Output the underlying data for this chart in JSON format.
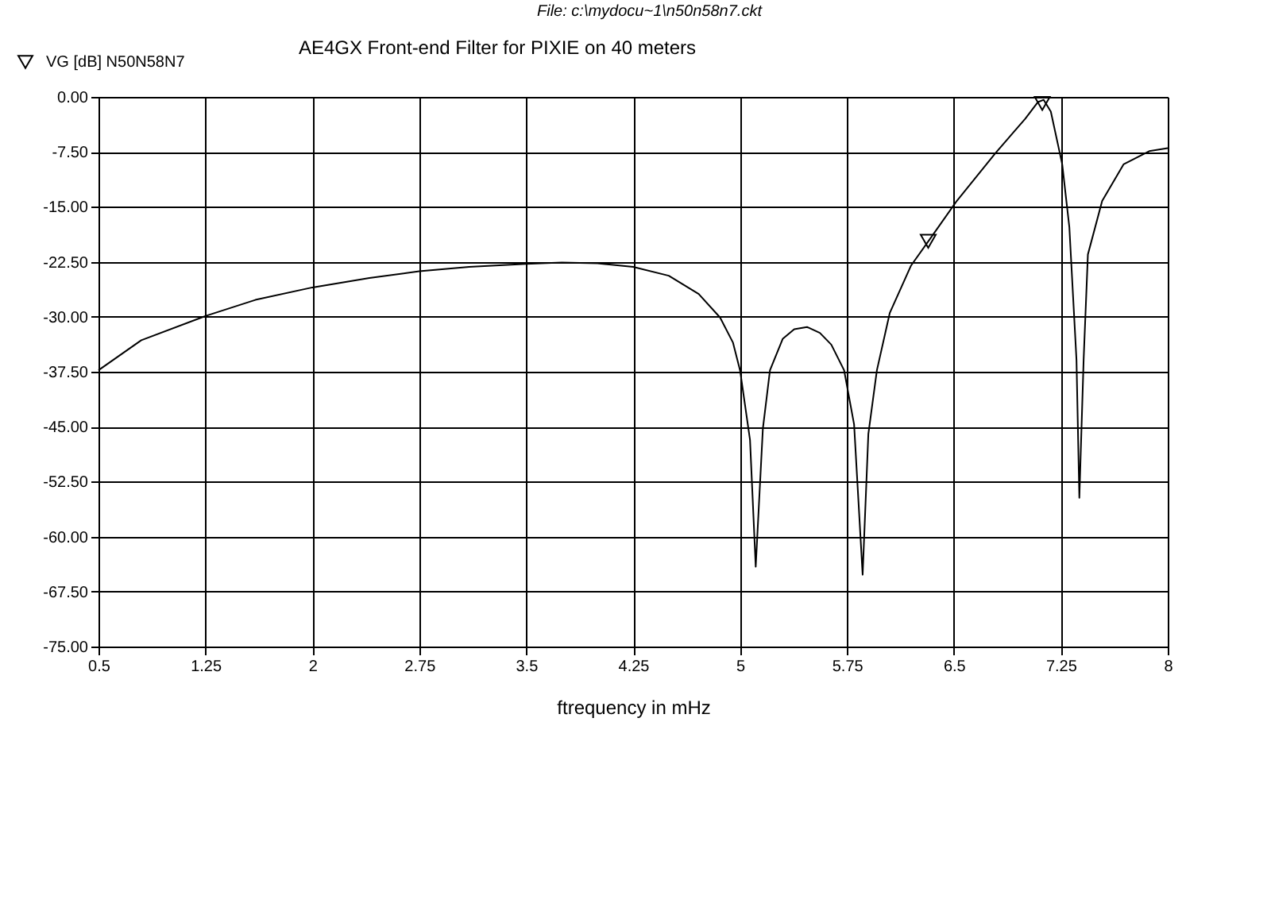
{
  "chart_data": {
    "type": "line",
    "title": "AE4GX  Front-end Filter for PIXIE on 40 meters",
    "xlabel": "ftrequency in mHz",
    "annotations": [
      "File: c:\\mydocu~1\\n50n58n7.ckt"
    ],
    "series": [
      {
        "name": "VG [dB] N50N58N7",
        "color": "#000000",
        "marker": "none",
        "x": [
          0.5,
          0.8,
          1.25,
          1.6,
          2,
          2.4,
          2.75,
          3.1,
          3.5,
          3.75,
          4.0,
          4.25,
          4.5,
          4.71,
          4.86,
          4.95,
          5.0,
          5.07,
          5.11,
          5.16,
          5.21,
          5.3,
          5.38,
          5.47,
          5.56,
          5.64,
          5.73,
          5.8,
          5.86,
          5.9,
          5.96,
          6.05,
          6.2,
          6.35,
          6.52,
          6.79,
          7.0,
          7.09,
          7.13,
          7.18,
          7.26,
          7.31,
          7.36,
          7.38,
          7.41,
          7.44,
          7.54,
          7.69,
          7.87,
          8.0
        ],
        "values": [
          -37.3,
          -33.2,
          -29.9,
          -27.7,
          -26.0,
          -24.7,
          -23.8,
          -23.2,
          -22.8,
          -22.6,
          -22.7,
          -23.2,
          -24.4,
          -26.9,
          -30.1,
          -33.5,
          -37.3,
          -46.8,
          -64.1,
          -45.3,
          -37.3,
          -33.0,
          -31.7,
          -31.4,
          -32.2,
          -33.8,
          -37.3,
          -44.7,
          -65.2,
          -46.0,
          -37.3,
          -29.5,
          -23.0,
          -18.9,
          -14.2,
          -7.7,
          -3.0,
          -0.7,
          -0.4,
          -2.0,
          -9.2,
          -17.8,
          -35.9,
          -54.7,
          -35.9,
          -21.5,
          -14.2,
          -9.2,
          -7.4,
          -7.0
        ]
      },
      {
        "type": "scatter",
        "color": "#000000",
        "marker": "triangle",
        "x": [
          6.32,
          7.12
        ],
        "values": [
          -19.7,
          -0.9
        ]
      }
    ],
    "xlim": [
      0.5,
      8
    ],
    "xticks": [
      0.5,
      1.25,
      2,
      2.75,
      3.5,
      4.25,
      5,
      5.75,
      6.5,
      7.25,
      8
    ],
    "ylim": [
      -75,
      0
    ],
    "yticks": [
      {
        "value": 0,
        "label": "0.00"
      },
      {
        "value": -7.5,
        "label": "-7.50"
      },
      {
        "value": -15,
        "label": "-15.00"
      },
      {
        "value": -22.5,
        "label": "-22.50"
      },
      {
        "value": -30,
        "label": "-30.00"
      },
      {
        "value": -37.5,
        "label": "-37.50"
      },
      {
        "value": -45,
        "label": "-45.00"
      },
      {
        "value": -52.5,
        "label": "-52.50"
      },
      {
        "value": -60,
        "label": "-60.00"
      },
      {
        "value": -67.5,
        "label": "-67.50"
      },
      {
        "value": -75,
        "label": "-75.00"
      }
    ],
    "grid": true,
    "legend": "top left"
  }
}
